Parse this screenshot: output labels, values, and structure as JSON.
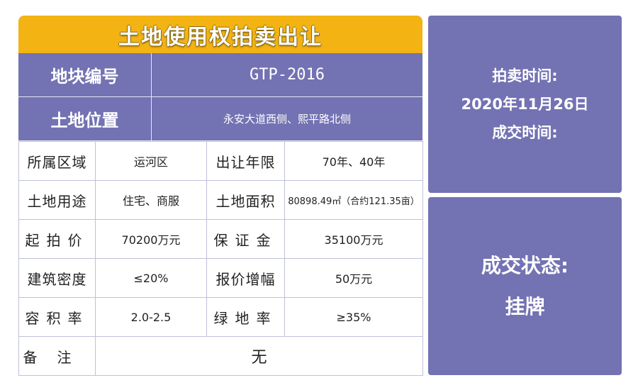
{
  "title": "土地使用权拍卖出让",
  "parcel": {
    "code_label": "地块编号",
    "code_value": "GTP-2016",
    "location_label": "土地位置",
    "location_value": "永安大道西侧、熙平路北侧"
  },
  "rows": [
    {
      "label1": "所属区域",
      "value1": "运河区",
      "label2": "出让年限",
      "value2": "70年、40年"
    },
    {
      "label1": "土地用途",
      "value1": "住宅、商服",
      "label2": "土地面积",
      "value2": "80898.49㎡（合约121.35亩）"
    },
    {
      "label1": "起拍价",
      "value1": "70200万元",
      "label2": "保证金",
      "value2": "35100万元"
    },
    {
      "label1": "建筑密度",
      "value1": "≤20%",
      "label2": "报价增幅",
      "value2": "50万元"
    },
    {
      "label1": "容积率",
      "value1": "2.0-2.5",
      "label2": "绿地率",
      "value2": "≥35%"
    }
  ],
  "remark": {
    "label": "备注",
    "value": "无"
  },
  "auction": {
    "time_label": "拍卖时间:",
    "time_value": "2020年11月26日",
    "deal_time_label": "成交时间:",
    "deal_time_value": ""
  },
  "status": {
    "label": "成交状态:",
    "value": "挂牌"
  },
  "colors": {
    "banner": "#f2b313",
    "panel": "#7372b3",
    "grid": "#bfc0da"
  }
}
